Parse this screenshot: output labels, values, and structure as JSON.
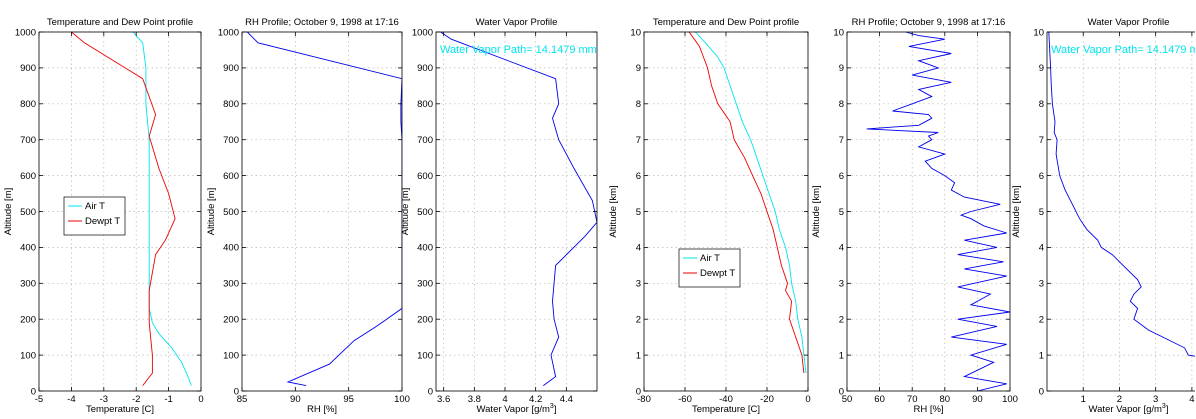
{
  "chart_data": [
    {
      "type": "line",
      "title": "Temperature and Dew Point profile",
      "xlabel": "Temperature [C]",
      "ylabel": "Altitude [m]",
      "xlim": [
        -5,
        0
      ],
      "ylim": [
        0,
        1000
      ],
      "xticks": [
        -5,
        -4,
        -3,
        -2,
        -1,
        0
      ],
      "yticks": [
        0,
        100,
        200,
        300,
        400,
        500,
        600,
        700,
        800,
        900,
        1000
      ],
      "grid": true,
      "legend": "middle-left",
      "series": [
        {
          "name": "Air T",
          "color": "#00e5ee",
          "x": [
            -0.3,
            -0.4,
            -0.6,
            -0.9,
            -1.3,
            -1.5,
            -1.6,
            -1.6,
            -1.6,
            -1.6,
            -1.6,
            -1.6,
            -1.6,
            -1.7,
            -1.7,
            -1.7,
            -1.8,
            -2.1
          ],
          "y": [
            15,
            40,
            80,
            120,
            160,
            190,
            230,
            300,
            380,
            450,
            520,
            600,
            700,
            800,
            870,
            900,
            970,
            1000
          ]
        },
        {
          "name": "Dewpt T",
          "color": "#ee0000",
          "x": [
            -1.8,
            -1.5,
            -1.5,
            -1.6,
            -1.6,
            -1.5,
            -1.4,
            -1.1,
            -0.8,
            -1.0,
            -1.3,
            -1.6,
            -1.4,
            -1.8,
            -3.6,
            -4.0
          ],
          "y": [
            15,
            50,
            100,
            190,
            280,
            330,
            380,
            420,
            480,
            550,
            620,
            710,
            770,
            870,
            970,
            1000
          ]
        }
      ]
    },
    {
      "type": "line",
      "title": "RH Profile; October 9, 1998 at 17:16",
      "xlabel": "RH [%]",
      "ylabel": "Altitude [m]",
      "xlim": [
        85,
        100
      ],
      "ylim": [
        0,
        1000
      ],
      "xticks": [
        85,
        90,
        95,
        100
      ],
      "yticks": [
        0,
        100,
        200,
        300,
        400,
        500,
        600,
        700,
        800,
        900,
        1000
      ],
      "grid": true,
      "series": [
        {
          "name": "",
          "color": "#0000ee",
          "x": [
            91,
            89.3,
            93.2,
            95.5,
            97.6,
            100,
            100,
            100,
            100,
            100,
            99.9,
            99.9,
            100,
            86.5,
            85.5
          ],
          "y": [
            15,
            25,
            75,
            140,
            180,
            230,
            280,
            400,
            600,
            700,
            750,
            800,
            870,
            970,
            1000
          ]
        }
      ]
    },
    {
      "type": "line",
      "title": "Water Vapor Profile",
      "xlabel": "Water Vapor [g/m^3]",
      "ylabel": "Altitude [m]",
      "xlim": [
        3.55,
        4.6
      ],
      "ylim": [
        0,
        1000
      ],
      "xticks": [
        3.6,
        3.8,
        4,
        4.2,
        4.4
      ],
      "yticks": [
        0,
        100,
        200,
        300,
        400,
        500,
        600,
        700,
        800,
        900,
        1000
      ],
      "grid": true,
      "annotation": "Water Vapor Path= 14.1479 mm",
      "series": [
        {
          "name": "",
          "color": "#0000ee",
          "x": [
            4.25,
            4.33,
            4.3,
            4.35,
            4.32,
            4.31,
            4.33,
            4.52,
            4.6,
            4.57,
            4.45,
            4.35,
            4.31,
            4.35,
            4.33,
            3.65,
            3.58
          ],
          "y": [
            15,
            40,
            100,
            150,
            200,
            250,
            350,
            430,
            470,
            530,
            620,
            700,
            760,
            800,
            870,
            980,
            1000
          ]
        }
      ]
    },
    {
      "type": "line",
      "title": "Temperature and Dew Point profile",
      "xlabel": "Temperature [C]",
      "ylabel": "Altitude [km]",
      "xlim": [
        -80,
        0
      ],
      "ylim": [
        0,
        10
      ],
      "xticks": [
        -80,
        -60,
        -40,
        -20,
        0
      ],
      "yticks": [
        0,
        1,
        2,
        3,
        4,
        5,
        6,
        7,
        8,
        9,
        10
      ],
      "grid": true,
      "legend": "lower-left",
      "series": [
        {
          "name": "Air T",
          "color": "#00e5ee",
          "x": [
            -1,
            -2,
            -3,
            -5,
            -6,
            -8,
            -9,
            -11,
            -14,
            -16,
            -19,
            -22,
            -25,
            -28,
            -32,
            -35,
            -38,
            -41,
            -44,
            -47,
            -50,
            -55
          ],
          "y": [
            0.5,
            1,
            1.5,
            2,
            2.5,
            3,
            3.5,
            4,
            4.5,
            5,
            5.5,
            6,
            6.5,
            7,
            7.5,
            8,
            8.5,
            9,
            9.3,
            9.5,
            9.7,
            10
          ]
        },
        {
          "name": "Dewpt T",
          "color": "#ee0000",
          "x": [
            -2,
            -3,
            -6,
            -9,
            -8,
            -11,
            -10,
            -13,
            -15,
            -17,
            -20,
            -23,
            -27,
            -31,
            -36,
            -38,
            -44,
            -47,
            -49,
            -51,
            -53,
            -58
          ],
          "y": [
            0.5,
            1,
            1.5,
            2,
            2.5,
            2.8,
            3,
            3.5,
            4,
            4.5,
            5,
            5.5,
            6,
            6.5,
            7,
            7.5,
            8,
            8.5,
            9,
            9.3,
            9.6,
            10
          ]
        }
      ]
    },
    {
      "type": "line",
      "title": "RH Profile; October 9, 1998 at 17:16",
      "xlabel": "RH [%]",
      "ylabel": "Altitude [km]",
      "xlim": [
        50,
        100
      ],
      "ylim": [
        0,
        10
      ],
      "xticks": [
        50,
        60,
        70,
        80,
        90,
        100
      ],
      "yticks": [
        0,
        1,
        2,
        3,
        4,
        5,
        6,
        7,
        8,
        9,
        10
      ],
      "grid": true,
      "series": [
        {
          "name": "",
          "color": "#0000ee",
          "x": [
            90,
            99,
            86,
            95,
            88,
            99,
            82,
            96,
            84,
            100,
            88,
            94,
            84,
            99,
            86,
            98,
            84,
            96,
            86,
            99,
            92,
            88,
            85,
            88,
            97,
            86,
            82,
            83,
            80,
            76,
            74,
            80,
            72,
            76,
            75,
            78,
            56,
            72,
            74,
            76,
            75,
            64,
            70,
            76,
            72,
            82,
            70,
            78,
            72,
            82,
            69,
            80,
            72,
            68
          ],
          "y": [
            0,
            0.2,
            0.4,
            0.8,
            1.0,
            1.3,
            1.5,
            1.8,
            2.0,
            2.2,
            2.4,
            2.7,
            2.9,
            3.2,
            3.4,
            3.6,
            3.8,
            4.0,
            4.2,
            4.4,
            4.6,
            4.8,
            4.9,
            5.0,
            5.2,
            5.4,
            5.6,
            5.8,
            6.0,
            6.2,
            6.4,
            6.6,
            6.8,
            7.0,
            7.1,
            7.2,
            7.3,
            7.4,
            7.5,
            7.6,
            7.7,
            7.8,
            8.0,
            8.2,
            8.4,
            8.6,
            8.8,
            9.0,
            9.2,
            9.4,
            9.6,
            9.8,
            9.9,
            10
          ]
        }
      ]
    },
    {
      "type": "line",
      "title": "Water Vapor Profile",
      "xlabel": "Water Vapor [g/m^3]",
      "ylabel": "Altitude [km]",
      "xlim": [
        0,
        4.5
      ],
      "ylim": [
        0,
        10
      ],
      "xticks": [
        1,
        2,
        3,
        4
      ],
      "yticks": [
        0,
        1,
        2,
        3,
        4,
        5,
        6,
        7,
        8,
        9,
        10
      ],
      "grid": true,
      "annotation": "Water Vapor Path= 14.1479 mm",
      "series": [
        {
          "name": "",
          "color": "#0000ee",
          "x": [
            4.5,
            3.9,
            3.8,
            3.2,
            2.8,
            2.4,
            2.5,
            2.3,
            2.4,
            2.6,
            2.5,
            2.1,
            1.8,
            1.5,
            1.4,
            1.1,
            0.9,
            0.7,
            0.5,
            0.35,
            0.3,
            0.25,
            0.28,
            0.2,
            0.22,
            0.15,
            0.12,
            0.1,
            0.05
          ],
          "y": [
            0.9,
            1.0,
            1.2,
            1.5,
            1.7,
            2.0,
            2.3,
            2.5,
            2.7,
            2.9,
            3.1,
            3.5,
            3.8,
            4.0,
            4.2,
            4.5,
            4.8,
            5.2,
            5.6,
            6.0,
            6.3,
            6.6,
            7.0,
            7.2,
            7.5,
            8.0,
            8.5,
            9.0,
            10
          ]
        }
      ]
    }
  ]
}
